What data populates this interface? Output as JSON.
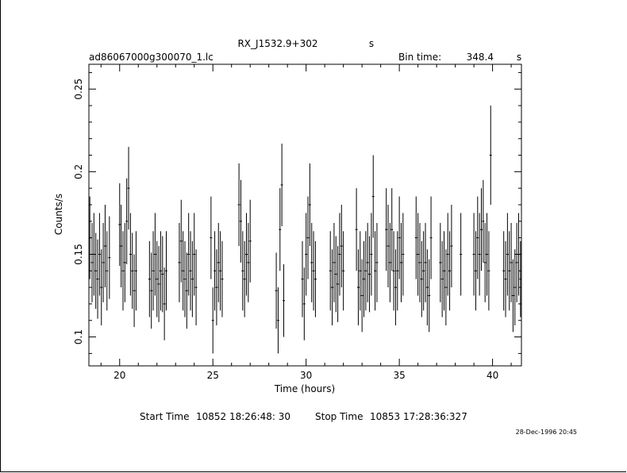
{
  "chart_data": {
    "type": "scatter",
    "title": "RX_J1532.9+302",
    "title_suffix": "s",
    "file_name": "ad86067000g300070_1.lc",
    "bin_time_label": "Bin time:",
    "bin_time_value": "348.4",
    "bin_time_unit": "s",
    "xlabel": "Time (hours)",
    "ylabel": "Counts/s",
    "xlim": [
      18.35,
      41.55
    ],
    "ylim": [
      0.0825,
      0.265
    ],
    "xticks": [
      20,
      25,
      30,
      35,
      40
    ],
    "xtick_labels": [
      "20",
      "25",
      "30",
      "35",
      "40"
    ],
    "yticks": [
      0.1,
      0.15,
      0.2,
      0.25
    ],
    "ytick_labels": [
      "0.1",
      "0.15",
      "0.2",
      "0.25"
    ],
    "grid": false,
    "error_bars": true,
    "points": [
      {
        "x": 18.4,
        "y": 0.16,
        "e": 0.025
      },
      {
        "x": 18.52,
        "y": 0.145,
        "e": 0.024
      },
      {
        "x": 18.62,
        "y": 0.15,
        "e": 0.025
      },
      {
        "x": 18.72,
        "y": 0.14,
        "e": 0.023
      },
      {
        "x": 18.82,
        "y": 0.135,
        "e": 0.024
      },
      {
        "x": 18.92,
        "y": 0.15,
        "e": 0.025
      },
      {
        "x": 19.02,
        "y": 0.13,
        "e": 0.023
      },
      {
        "x": 19.12,
        "y": 0.145,
        "e": 0.024
      },
      {
        "x": 19.22,
        "y": 0.155,
        "e": 0.025
      },
      {
        "x": 19.32,
        "y": 0.14,
        "e": 0.024
      },
      {
        "x": 19.45,
        "y": 0.148,
        "e": 0.025
      },
      {
        "x": 20.0,
        "y": 0.168,
        "e": 0.025
      },
      {
        "x": 20.08,
        "y": 0.155,
        "e": 0.025
      },
      {
        "x": 20.18,
        "y": 0.14,
        "e": 0.024
      },
      {
        "x": 20.28,
        "y": 0.145,
        "e": 0.024
      },
      {
        "x": 20.38,
        "y": 0.17,
        "e": 0.026
      },
      {
        "x": 20.48,
        "y": 0.19,
        "e": 0.025
      },
      {
        "x": 20.58,
        "y": 0.15,
        "e": 0.025
      },
      {
        "x": 20.68,
        "y": 0.14,
        "e": 0.023
      },
      {
        "x": 20.78,
        "y": 0.128,
        "e": 0.022
      },
      {
        "x": 20.88,
        "y": 0.14,
        "e": 0.024
      },
      {
        "x": 21.6,
        "y": 0.135,
        "e": 0.023
      },
      {
        "x": 21.7,
        "y": 0.128,
        "e": 0.023
      },
      {
        "x": 21.8,
        "y": 0.14,
        "e": 0.024
      },
      {
        "x": 21.9,
        "y": 0.15,
        "e": 0.025
      },
      {
        "x": 22.0,
        "y": 0.135,
        "e": 0.023
      },
      {
        "x": 22.1,
        "y": 0.132,
        "e": 0.023
      },
      {
        "x": 22.2,
        "y": 0.14,
        "e": 0.024
      },
      {
        "x": 22.3,
        "y": 0.138,
        "e": 0.023
      },
      {
        "x": 22.4,
        "y": 0.12,
        "e": 0.022
      },
      {
        "x": 22.5,
        "y": 0.14,
        "e": 0.024
      },
      {
        "x": 23.2,
        "y": 0.145,
        "e": 0.024
      },
      {
        "x": 23.3,
        "y": 0.158,
        "e": 0.025
      },
      {
        "x": 23.4,
        "y": 0.14,
        "e": 0.024
      },
      {
        "x": 23.5,
        "y": 0.135,
        "e": 0.023
      },
      {
        "x": 23.6,
        "y": 0.128,
        "e": 0.023
      },
      {
        "x": 23.7,
        "y": 0.15,
        "e": 0.025
      },
      {
        "x": 23.8,
        "y": 0.14,
        "e": 0.024
      },
      {
        "x": 23.9,
        "y": 0.135,
        "e": 0.023
      },
      {
        "x": 24.0,
        "y": 0.15,
        "e": 0.025
      },
      {
        "x": 24.1,
        "y": 0.13,
        "e": 0.023
      },
      {
        "x": 24.9,
        "y": 0.16,
        "e": 0.025
      },
      {
        "x": 25.0,
        "y": 0.11,
        "e": 0.02
      },
      {
        "x": 25.1,
        "y": 0.14,
        "e": 0.024
      },
      {
        "x": 25.2,
        "y": 0.13,
        "e": 0.023
      },
      {
        "x": 25.3,
        "y": 0.145,
        "e": 0.024
      },
      {
        "x": 25.4,
        "y": 0.14,
        "e": 0.024
      },
      {
        "x": 25.5,
        "y": 0.135,
        "e": 0.023
      },
      {
        "x": 26.4,
        "y": 0.18,
        "e": 0.025
      },
      {
        "x": 26.5,
        "y": 0.17,
        "e": 0.025
      },
      {
        "x": 26.6,
        "y": 0.14,
        "e": 0.024
      },
      {
        "x": 26.7,
        "y": 0.135,
        "e": 0.023
      },
      {
        "x": 26.8,
        "y": 0.15,
        "e": 0.025
      },
      {
        "x": 26.9,
        "y": 0.145,
        "e": 0.024
      },
      {
        "x": 27.0,
        "y": 0.158,
        "e": 0.025
      },
      {
        "x": 28.4,
        "y": 0.128,
        "e": 0.023
      },
      {
        "x": 28.5,
        "y": 0.11,
        "e": 0.02
      },
      {
        "x": 28.6,
        "y": 0.165,
        "e": 0.025
      },
      {
        "x": 28.7,
        "y": 0.192,
        "e": 0.025
      },
      {
        "x": 28.8,
        "y": 0.122,
        "e": 0.022
      },
      {
        "x": 29.8,
        "y": 0.135,
        "e": 0.023
      },
      {
        "x": 29.9,
        "y": 0.12,
        "e": 0.022
      },
      {
        "x": 30.0,
        "y": 0.15,
        "e": 0.025
      },
      {
        "x": 30.1,
        "y": 0.16,
        "e": 0.025
      },
      {
        "x": 30.2,
        "y": 0.18,
        "e": 0.025
      },
      {
        "x": 30.3,
        "y": 0.145,
        "e": 0.024
      },
      {
        "x": 30.4,
        "y": 0.14,
        "e": 0.024
      },
      {
        "x": 30.5,
        "y": 0.135,
        "e": 0.023
      },
      {
        "x": 31.3,
        "y": 0.14,
        "e": 0.024
      },
      {
        "x": 31.4,
        "y": 0.13,
        "e": 0.023
      },
      {
        "x": 31.5,
        "y": 0.145,
        "e": 0.024
      },
      {
        "x": 31.6,
        "y": 0.138,
        "e": 0.023
      },
      {
        "x": 31.7,
        "y": 0.132,
        "e": 0.023
      },
      {
        "x": 31.8,
        "y": 0.15,
        "e": 0.025
      },
      {
        "x": 31.9,
        "y": 0.155,
        "e": 0.025
      },
      {
        "x": 32.0,
        "y": 0.14,
        "e": 0.024
      },
      {
        "x": 32.7,
        "y": 0.165,
        "e": 0.025
      },
      {
        "x": 32.8,
        "y": 0.13,
        "e": 0.023
      },
      {
        "x": 32.9,
        "y": 0.14,
        "e": 0.024
      },
      {
        "x": 33.0,
        "y": 0.125,
        "e": 0.022
      },
      {
        "x": 33.1,
        "y": 0.135,
        "e": 0.023
      },
      {
        "x": 33.2,
        "y": 0.14,
        "e": 0.024
      },
      {
        "x": 33.3,
        "y": 0.145,
        "e": 0.024
      },
      {
        "x": 33.4,
        "y": 0.138,
        "e": 0.023
      },
      {
        "x": 33.5,
        "y": 0.15,
        "e": 0.025
      },
      {
        "x": 33.6,
        "y": 0.185,
        "e": 0.025
      },
      {
        "x": 33.7,
        "y": 0.14,
        "e": 0.024
      },
      {
        "x": 33.8,
        "y": 0.145,
        "e": 0.024
      },
      {
        "x": 34.3,
        "y": 0.165,
        "e": 0.025
      },
      {
        "x": 34.4,
        "y": 0.155,
        "e": 0.025
      },
      {
        "x": 34.5,
        "y": 0.145,
        "e": 0.024
      },
      {
        "x": 34.6,
        "y": 0.165,
        "e": 0.025
      },
      {
        "x": 34.7,
        "y": 0.14,
        "e": 0.024
      },
      {
        "x": 34.8,
        "y": 0.13,
        "e": 0.023
      },
      {
        "x": 34.9,
        "y": 0.14,
        "e": 0.024
      },
      {
        "x": 35.0,
        "y": 0.16,
        "e": 0.025
      },
      {
        "x": 35.1,
        "y": 0.145,
        "e": 0.024
      },
      {
        "x": 35.2,
        "y": 0.15,
        "e": 0.025
      },
      {
        "x": 35.9,
        "y": 0.16,
        "e": 0.025
      },
      {
        "x": 36.0,
        "y": 0.15,
        "e": 0.025
      },
      {
        "x": 36.1,
        "y": 0.145,
        "e": 0.024
      },
      {
        "x": 36.2,
        "y": 0.135,
        "e": 0.023
      },
      {
        "x": 36.3,
        "y": 0.14,
        "e": 0.024
      },
      {
        "x": 36.4,
        "y": 0.145,
        "e": 0.024
      },
      {
        "x": 36.5,
        "y": 0.13,
        "e": 0.023
      },
      {
        "x": 36.6,
        "y": 0.125,
        "e": 0.022
      },
      {
        "x": 36.7,
        "y": 0.16,
        "e": 0.025
      },
      {
        "x": 37.2,
        "y": 0.145,
        "e": 0.024
      },
      {
        "x": 37.3,
        "y": 0.135,
        "e": 0.023
      },
      {
        "x": 37.4,
        "y": 0.14,
        "e": 0.024
      },
      {
        "x": 37.5,
        "y": 0.13,
        "e": 0.023
      },
      {
        "x": 37.6,
        "y": 0.15,
        "e": 0.025
      },
      {
        "x": 37.7,
        "y": 0.14,
        "e": 0.024
      },
      {
        "x": 37.8,
        "y": 0.155,
        "e": 0.025
      },
      {
        "x": 38.3,
        "y": 0.15,
        "e": 0.025
      },
      {
        "x": 39.0,
        "y": 0.15,
        "e": 0.025
      },
      {
        "x": 39.1,
        "y": 0.14,
        "e": 0.024
      },
      {
        "x": 39.2,
        "y": 0.16,
        "e": 0.025
      },
      {
        "x": 39.3,
        "y": 0.15,
        "e": 0.025
      },
      {
        "x": 39.4,
        "y": 0.165,
        "e": 0.025
      },
      {
        "x": 39.5,
        "y": 0.17,
        "e": 0.025
      },
      {
        "x": 39.6,
        "y": 0.145,
        "e": 0.024
      },
      {
        "x": 39.7,
        "y": 0.15,
        "e": 0.025
      },
      {
        "x": 39.8,
        "y": 0.14,
        "e": 0.024
      },
      {
        "x": 39.9,
        "y": 0.21,
        "e": 0.03
      },
      {
        "x": 40.6,
        "y": 0.14,
        "e": 0.024
      },
      {
        "x": 40.7,
        "y": 0.135,
        "e": 0.023
      },
      {
        "x": 40.8,
        "y": 0.15,
        "e": 0.025
      },
      {
        "x": 40.9,
        "y": 0.14,
        "e": 0.024
      },
      {
        "x": 41.0,
        "y": 0.145,
        "e": 0.024
      },
      {
        "x": 41.1,
        "y": 0.125,
        "e": 0.022
      },
      {
        "x": 41.2,
        "y": 0.13,
        "e": 0.023
      },
      {
        "x": 41.3,
        "y": 0.145,
        "e": 0.024
      },
      {
        "x": 41.4,
        "y": 0.15,
        "e": 0.025
      },
      {
        "x": 41.5,
        "y": 0.135,
        "e": 0.023
      }
    ]
  },
  "footer": {
    "start_label": "Start Time",
    "start_value": "10852  18:26:48: 30",
    "stop_label": "Stop Time",
    "stop_value": "10853  17:28:36:327",
    "timestamp": "28-Dec-1996 20:45"
  }
}
